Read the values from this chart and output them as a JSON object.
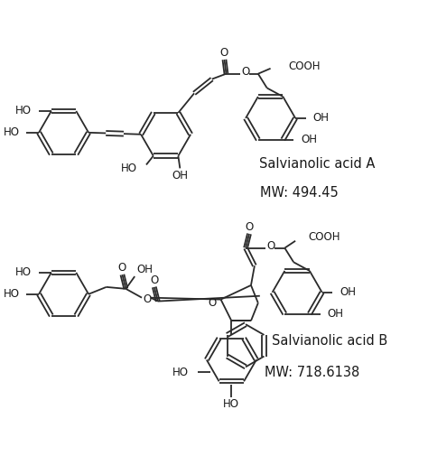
{
  "compound_a_name": "Salvianolic acid A",
  "compound_a_mw": "MW: 494.45",
  "compound_b_name": "Salvianolic acid B",
  "compound_b_mw": "MW: 718.6138",
  "bg_color": "#ffffff",
  "line_color": "#2a2a2a",
  "text_color": "#1a1a1a",
  "font_size": 8.5,
  "label_font_size": 10.5
}
